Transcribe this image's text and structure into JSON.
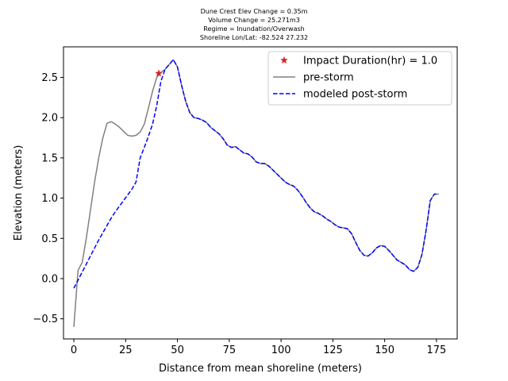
{
  "chart_data": {
    "type": "line",
    "title_lines": [
      "Dune Crest Elev Change = 0.35m",
      "Volume Change = 25.271m3",
      "Regime = Inundation/Overwash",
      "Shoreline Lon/Lat: -82.524 27.232"
    ],
    "xlabel": "Distance from mean shoreline (meters)",
    "ylabel": "Elevation (meters)",
    "xlim": [
      -5,
      185
    ],
    "ylim": [
      -0.75,
      2.88
    ],
    "xticks": [
      0,
      25,
      50,
      75,
      100,
      125,
      150,
      175
    ],
    "yticks": [
      -0.5,
      0.0,
      0.5,
      1.0,
      1.5,
      2.0,
      2.5
    ],
    "xtick_labels": [
      "0",
      "25",
      "50",
      "75",
      "100",
      "125",
      "150",
      "175"
    ],
    "ytick_labels": [
      "−0.5",
      "0.0",
      "0.5",
      "1.0",
      "1.5",
      "2.0",
      "2.5"
    ],
    "grid": false,
    "legend_position": "upper right",
    "series": [
      {
        "name": "pre-storm",
        "color": "#808080",
        "style": "solid",
        "points": [
          [
            0,
            -0.6
          ],
          [
            2,
            0.1
          ],
          [
            4,
            0.2
          ],
          [
            6,
            0.5
          ],
          [
            8,
            0.85
          ],
          [
            10,
            1.2
          ],
          [
            12,
            1.5
          ],
          [
            14,
            1.75
          ],
          [
            16,
            1.93
          ],
          [
            18,
            1.95
          ],
          [
            20,
            1.92
          ],
          [
            22,
            1.88
          ],
          [
            24,
            1.83
          ],
          [
            26,
            1.78
          ],
          [
            28,
            1.77
          ],
          [
            30,
            1.78
          ],
          [
            32,
            1.82
          ],
          [
            34,
            1.92
          ],
          [
            36,
            2.12
          ],
          [
            38,
            2.33
          ],
          [
            40,
            2.5
          ],
          [
            42,
            2.56
          ],
          [
            44,
            2.6
          ],
          [
            46,
            2.66
          ],
          [
            48,
            2.72
          ],
          [
            50,
            2.63
          ],
          [
            52,
            2.4
          ],
          [
            54,
            2.2
          ],
          [
            56,
            2.06
          ],
          [
            58,
            2.0
          ],
          [
            60,
            1.99
          ],
          [
            62,
            1.97
          ],
          [
            64,
            1.94
          ],
          [
            66,
            1.88
          ],
          [
            68,
            1.84
          ],
          [
            70,
            1.8
          ],
          [
            72,
            1.74
          ],
          [
            74,
            1.66
          ],
          [
            76,
            1.63
          ],
          [
            78,
            1.64
          ],
          [
            80,
            1.6
          ],
          [
            82,
            1.56
          ],
          [
            84,
            1.55
          ],
          [
            86,
            1.51
          ],
          [
            88,
            1.45
          ],
          [
            90,
            1.43
          ],
          [
            92,
            1.43
          ],
          [
            94,
            1.4
          ],
          [
            96,
            1.35
          ],
          [
            98,
            1.3
          ],
          [
            100,
            1.25
          ],
          [
            102,
            1.2
          ],
          [
            104,
            1.17
          ],
          [
            106,
            1.15
          ],
          [
            108,
            1.1
          ],
          [
            110,
            1.03
          ],
          [
            112,
            0.95
          ],
          [
            114,
            0.88
          ],
          [
            116,
            0.83
          ],
          [
            118,
            0.81
          ],
          [
            120,
            0.78
          ],
          [
            122,
            0.74
          ],
          [
            124,
            0.71
          ],
          [
            126,
            0.67
          ],
          [
            128,
            0.64
          ],
          [
            130,
            0.63
          ],
          [
            132,
            0.62
          ],
          [
            134,
            0.56
          ],
          [
            136,
            0.45
          ],
          [
            138,
            0.35
          ],
          [
            140,
            0.29
          ],
          [
            142,
            0.28
          ],
          [
            144,
            0.32
          ],
          [
            146,
            0.38
          ],
          [
            148,
            0.41
          ],
          [
            150,
            0.4
          ],
          [
            152,
            0.35
          ],
          [
            154,
            0.29
          ],
          [
            156,
            0.23
          ],
          [
            158,
            0.2
          ],
          [
            160,
            0.17
          ],
          [
            162,
            0.11
          ],
          [
            164,
            0.09
          ],
          [
            166,
            0.14
          ],
          [
            168,
            0.3
          ],
          [
            170,
            0.6
          ],
          [
            172,
            0.97
          ],
          [
            174,
            1.05
          ],
          [
            176,
            1.05
          ]
        ]
      },
      {
        "name": "modeled post-storm",
        "color": "#0000ff",
        "style": "dashed",
        "points": [
          [
            0,
            -0.12
          ],
          [
            2,
            -0.02
          ],
          [
            4,
            0.08
          ],
          [
            6,
            0.18
          ],
          [
            8,
            0.28
          ],
          [
            10,
            0.38
          ],
          [
            12,
            0.48
          ],
          [
            14,
            0.57
          ],
          [
            16,
            0.66
          ],
          [
            18,
            0.75
          ],
          [
            20,
            0.83
          ],
          [
            22,
            0.9
          ],
          [
            24,
            0.97
          ],
          [
            26,
            1.04
          ],
          [
            28,
            1.11
          ],
          [
            30,
            1.2
          ],
          [
            32,
            1.5
          ],
          [
            34,
            1.63
          ],
          [
            36,
            1.77
          ],
          [
            38,
            1.92
          ],
          [
            40,
            2.15
          ],
          [
            42,
            2.45
          ],
          [
            44,
            2.6
          ],
          [
            46,
            2.66
          ],
          [
            48,
            2.72
          ],
          [
            50,
            2.63
          ],
          [
            52,
            2.4
          ],
          [
            54,
            2.2
          ],
          [
            56,
            2.06
          ],
          [
            58,
            2.0
          ],
          [
            60,
            1.99
          ],
          [
            62,
            1.97
          ],
          [
            64,
            1.94
          ],
          [
            66,
            1.88
          ],
          [
            68,
            1.84
          ],
          [
            70,
            1.8
          ],
          [
            72,
            1.74
          ],
          [
            74,
            1.66
          ],
          [
            76,
            1.63
          ],
          [
            78,
            1.64
          ],
          [
            80,
            1.6
          ],
          [
            82,
            1.56
          ],
          [
            84,
            1.55
          ],
          [
            86,
            1.51
          ],
          [
            88,
            1.45
          ],
          [
            90,
            1.43
          ],
          [
            92,
            1.43
          ],
          [
            94,
            1.4
          ],
          [
            96,
            1.35
          ],
          [
            98,
            1.3
          ],
          [
            100,
            1.25
          ],
          [
            102,
            1.2
          ],
          [
            104,
            1.17
          ],
          [
            106,
            1.15
          ],
          [
            108,
            1.1
          ],
          [
            110,
            1.03
          ],
          [
            112,
            0.95
          ],
          [
            114,
            0.88
          ],
          [
            116,
            0.83
          ],
          [
            118,
            0.81
          ],
          [
            120,
            0.78
          ],
          [
            122,
            0.74
          ],
          [
            124,
            0.71
          ],
          [
            126,
            0.67
          ],
          [
            128,
            0.64
          ],
          [
            130,
            0.63
          ],
          [
            132,
            0.62
          ],
          [
            134,
            0.56
          ],
          [
            136,
            0.45
          ],
          [
            138,
            0.35
          ],
          [
            140,
            0.29
          ],
          [
            142,
            0.28
          ],
          [
            144,
            0.32
          ],
          [
            146,
            0.38
          ],
          [
            148,
            0.41
          ],
          [
            150,
            0.4
          ],
          [
            152,
            0.35
          ],
          [
            154,
            0.29
          ],
          [
            156,
            0.23
          ],
          [
            158,
            0.2
          ],
          [
            160,
            0.17
          ],
          [
            162,
            0.11
          ],
          [
            164,
            0.09
          ],
          [
            166,
            0.14
          ],
          [
            168,
            0.3
          ],
          [
            170,
            0.6
          ],
          [
            172,
            0.97
          ],
          [
            174,
            1.05
          ],
          [
            176,
            1.05
          ]
        ]
      }
    ],
    "markers": [
      {
        "name": "Impact Duration(hr) = 1.0",
        "x": 41,
        "y": 2.55,
        "color": "#d62728",
        "shape": "star"
      }
    ]
  }
}
